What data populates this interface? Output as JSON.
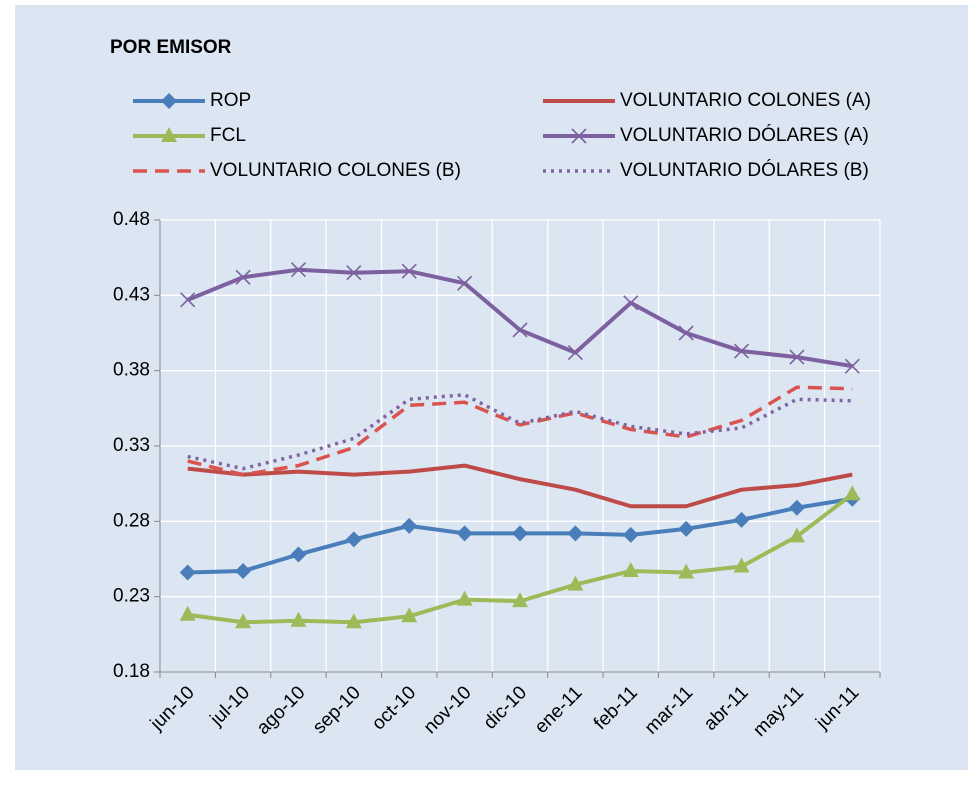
{
  "chart_data": {
    "type": "line",
    "title": "POR EMISOR",
    "categories": [
      "jun-10",
      "jul-10",
      "ago-10",
      "sep-10",
      "oct-10",
      "nov-10",
      "dic-10",
      "ene-11",
      "feb-11",
      "mar-11",
      "abr-11",
      "may-11",
      "jun-11"
    ],
    "ylim": [
      0.18,
      0.48
    ],
    "yticks": [
      0.18,
      0.23,
      0.28,
      0.33,
      0.38,
      0.43,
      0.48
    ],
    "grid": true,
    "series": [
      {
        "name": "ROP",
        "color": "#4a7ebb",
        "marker": "diamond",
        "dash": "solid",
        "values": [
          0.246,
          0.247,
          0.258,
          0.268,
          0.277,
          0.272,
          0.272,
          0.272,
          0.271,
          0.275,
          0.281,
          0.289,
          0.295
        ]
      },
      {
        "name": "FCL",
        "color": "#9bbb59",
        "marker": "triangle",
        "dash": "solid",
        "values": [
          0.218,
          0.213,
          0.214,
          0.213,
          0.217,
          0.228,
          0.227,
          0.238,
          0.247,
          0.246,
          0.25,
          0.27,
          0.298
        ]
      },
      {
        "name": "VOLUNTARIO COLONES (A)",
        "color": "#be4b48",
        "marker": "none",
        "dash": "solid",
        "values": [
          0.315,
          0.311,
          0.313,
          0.311,
          0.313,
          0.317,
          0.308,
          0.301,
          0.29,
          0.29,
          0.301,
          0.304,
          0.311
        ]
      },
      {
        "name": "VOLUNTARIO DÓLARES (A)",
        "color": "#7d60a0",
        "marker": "x",
        "dash": "solid",
        "values": [
          0.427,
          0.442,
          0.447,
          0.445,
          0.446,
          0.438,
          0.407,
          0.392,
          0.425,
          0.405,
          0.393,
          0.389,
          0.383
        ]
      },
      {
        "name": "VOLUNTARIO COLONES (B)",
        "color": "#d9534f",
        "marker": "none",
        "dash": "dashed",
        "values": [
          0.32,
          0.311,
          0.317,
          0.329,
          0.357,
          0.359,
          0.344,
          0.352,
          0.341,
          0.336,
          0.347,
          0.369,
          0.368
        ]
      },
      {
        "name": "VOLUNTARIO DÓLARES (B)",
        "color": "#8064a2",
        "marker": "none",
        "dash": "dotted",
        "values": [
          0.323,
          0.315,
          0.324,
          0.335,
          0.361,
          0.364,
          0.345,
          0.353,
          0.343,
          0.338,
          0.342,
          0.361,
          0.36
        ]
      }
    ]
  }
}
